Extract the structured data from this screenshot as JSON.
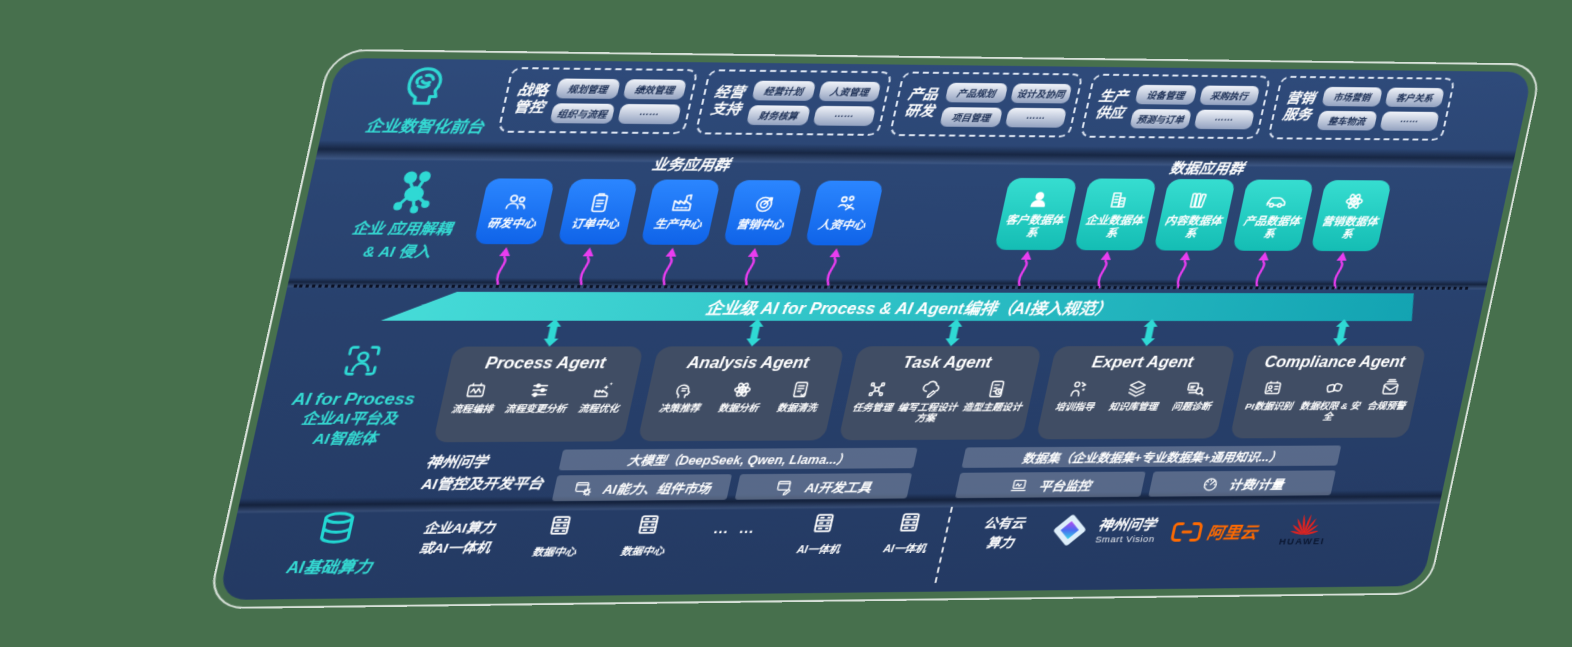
{
  "layers": {
    "front_office": {
      "label": "企业数智化前台",
      "groups": [
        {
          "title_line1": "战略",
          "title_line2": "管控",
          "chips": [
            "规划管理",
            "绩效管理",
            "组织与流程",
            "……"
          ]
        },
        {
          "title_line1": "经营",
          "title_line2": "支持",
          "chips": [
            "经营计划",
            "人资管理",
            "财务核算",
            "……"
          ]
        },
        {
          "title_line1": "产品",
          "title_line2": "研发",
          "chips": [
            "产品规划",
            "设计及协同",
            "项目管理",
            "……"
          ]
        },
        {
          "title_line1": "生产",
          "title_line2": "供应",
          "chips": [
            "设备管理",
            "采购执行",
            "预测与订单",
            "……"
          ]
        },
        {
          "title_line1": "营销",
          "title_line2": "服务",
          "chips": [
            "市场营销",
            "客户关系",
            "整车物流",
            "……"
          ]
        }
      ]
    },
    "decouple": {
      "label_line1": "企业 应用解耦",
      "label_line2": "& AI 侵入",
      "business_group_title": "业务应用群",
      "business_apps": [
        {
          "label": "研发中心",
          "icon": "users-icon"
        },
        {
          "label": "订单中心",
          "icon": "clipboard-icon"
        },
        {
          "label": "生产中心",
          "icon": "factory-icon"
        },
        {
          "label": "营销中心",
          "icon": "target-icon"
        },
        {
          "label": "人资中心",
          "icon": "people-run-icon"
        }
      ],
      "data_group_title": "数据应用群",
      "data_apps": [
        {
          "label": "客户数据体系",
          "icon": "person-icon"
        },
        {
          "label": "企业数据体系",
          "icon": "building-icon"
        },
        {
          "label": "内容数据体系",
          "icon": "books-icon"
        },
        {
          "label": "产品数据体系",
          "icon": "car-icon"
        },
        {
          "label": "营销数据体系",
          "icon": "atom-icon"
        }
      ]
    },
    "bus": {
      "label": "企业级 AI for Process & AI Agent编排（AI接入规范）"
    },
    "agents": {
      "side_title": "AI for Process",
      "side_line2": "企业AI平台及",
      "side_line3": "AI智能体",
      "cards": [
        {
          "title": "Process Agent",
          "items": [
            {
              "label": "流程编排",
              "icon": "flow-icon"
            },
            {
              "label": "流程变更分析",
              "icon": "sliders-icon"
            },
            {
              "label": "流程优化",
              "icon": "optimize-icon"
            }
          ]
        },
        {
          "title": "Analysis Agent",
          "items": [
            {
              "label": "决策推荐",
              "icon": "head-icon"
            },
            {
              "label": "数据分析",
              "icon": "atom-icon"
            },
            {
              "label": "数据清洗",
              "icon": "doc-icon"
            }
          ]
        },
        {
          "title": "Task Agent",
          "items": [
            {
              "label": "任务管理",
              "icon": "nodes-icon"
            },
            {
              "label": "编写工程设计方案",
              "icon": "cloud-pen-icon"
            },
            {
              "label": "造型主题设计",
              "icon": "tablet-icon"
            }
          ]
        },
        {
          "title": "Expert Agent",
          "items": [
            {
              "label": "培训指导",
              "icon": "trainer-icon"
            },
            {
              "label": "知识库管理",
              "icon": "layers-icon"
            },
            {
              "label": "问题诊断",
              "icon": "diagnose-icon"
            }
          ]
        },
        {
          "title": "Compliance Agent",
          "items": [
            {
              "label": "PI数据识别",
              "icon": "id-card-icon"
            },
            {
              "label": "数据权限 & 安全",
              "icon": "link-icon"
            },
            {
              "label": "合规预警",
              "icon": "mail-alert-icon"
            }
          ]
        }
      ]
    },
    "platform": {
      "side_line1": "神州问学",
      "side_line2": "AI管控及开发平台",
      "left": {
        "bar": "大模型（DeepSeek, Qwen, Llama...）",
        "cells": [
          {
            "label": "AI能力、组件市场",
            "icon": "window-gear-icon"
          },
          {
            "label": "AI开发工具",
            "icon": "window-pen-icon"
          }
        ]
      },
      "right": {
        "bar": "数据集（企业数据集+专业数据集+通用知识...）",
        "cells": [
          {
            "label": "平台监控",
            "icon": "monitor-icon"
          },
          {
            "label": "计费/计量",
            "icon": "gauge-icon"
          }
        ]
      }
    },
    "infra": {
      "label": "AI基础算力",
      "compute_line1": "企业AI算力",
      "compute_line2": "或AI一体机",
      "nodes": [
        {
          "label": "数据中心",
          "icon": "server-icon"
        },
        {
          "label": "数据中心",
          "icon": "server-icon"
        },
        {
          "label": "… …"
        },
        {
          "label": "AI一体机",
          "icon": "server-icon"
        },
        {
          "label": "AI一体机",
          "icon": "server-icon"
        }
      ],
      "cloud_line1": "公有云",
      "cloud_line2": "算力",
      "partners": {
        "smart_vision_cn": "神州问学",
        "smart_vision_en": "Smart Vision",
        "aliyun": "阿里云",
        "huawei": "HUAWEI"
      }
    }
  },
  "colors": {
    "accent_teal": "#2fd9d4",
    "app_blue": "#1777f2",
    "data_teal": "#24d3c5",
    "arrow_magenta": "#e93df0",
    "bus_teal_start": "#46dcd8",
    "bus_teal_end": "#13a3b2",
    "aliyun_orange": "#ff6a00",
    "huawei_red": "#e6221e",
    "panel_navy": "#28416d",
    "background_green": "#47704d"
  }
}
